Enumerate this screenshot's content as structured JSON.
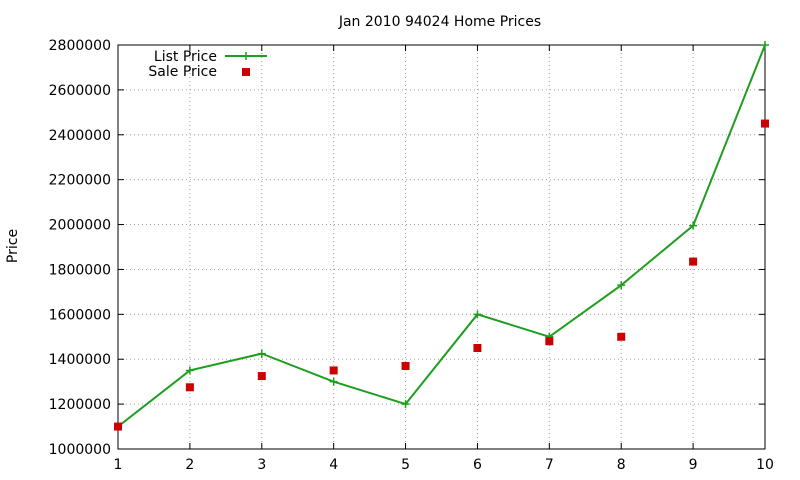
{
  "colors": {
    "list_price": "#1e9e1e",
    "sale_price": "#cc0000",
    "grid": "#a0a0a0",
    "axis": "#000000"
  },
  "chart_data": {
    "type": "line",
    "title": "Jan 2010 94024 Home Prices",
    "xlabel": "",
    "ylabel": "Price",
    "x": [
      1,
      2,
      3,
      4,
      5,
      6,
      7,
      8,
      9,
      10
    ],
    "xlim": [
      1,
      10
    ],
    "ylim": [
      1000000,
      2800000
    ],
    "xticks": [
      "1",
      "2",
      "3",
      "4",
      "5",
      "6",
      "7",
      "8",
      "9",
      "10"
    ],
    "yticks": [
      1000000,
      1200000,
      1400000,
      1600000,
      1800000,
      2000000,
      2200000,
      2400000,
      2600000,
      2800000
    ],
    "ytick_labels": [
      "1000000",
      "1200000",
      "1400000",
      "1600000",
      "1800000",
      "2000000",
      "2200000",
      "2400000",
      "2600000",
      "2800000"
    ],
    "grid": true,
    "legend_position": "top-left",
    "series": [
      {
        "name": "List Price",
        "style": "line+cross",
        "values": [
          1100000,
          1350000,
          1425000,
          1300000,
          1200000,
          1600000,
          1500000,
          1730000,
          1995000,
          2800000
        ]
      },
      {
        "name": "Sale Price",
        "style": "square-points",
        "values": [
          1100000,
          1275000,
          1325000,
          1350000,
          1370000,
          1450000,
          1480000,
          1500000,
          1835000,
          2450000
        ]
      }
    ]
  }
}
